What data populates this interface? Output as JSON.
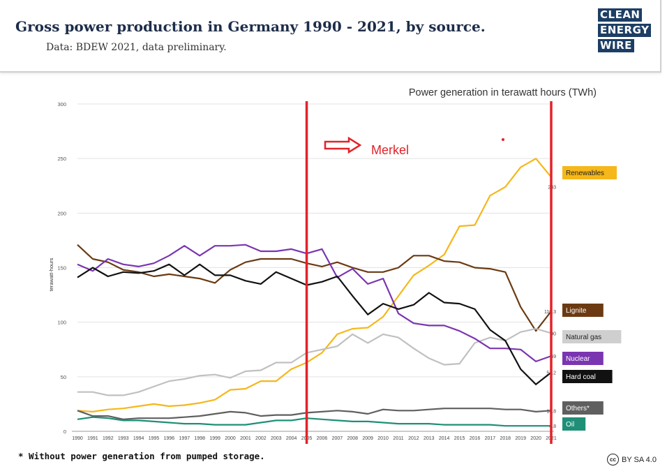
{
  "header": {
    "title": "Gross power production in Germany 1990 - 2021, by source.",
    "subtitle": "Data: BDEW 2021, data preliminary.",
    "logo_lines": [
      "CLEAN",
      "ENERGY",
      "WIRE"
    ]
  },
  "footnote": "* Without power generation from pumped storage.",
  "license": {
    "icon_text": "cc",
    "text": "BY SA 4.0"
  },
  "annotation": {
    "label": "Merkel",
    "line_years": [
      2005,
      2021
    ],
    "color": "#e32228"
  },
  "chart_data": {
    "type": "line",
    "title": "Power generation in terawatt hours (TWh)",
    "ylabel": "terawatt-hours",
    "xlabel": "",
    "ylim": [
      0,
      300
    ],
    "yticks": [
      0,
      50,
      100,
      150,
      200,
      250,
      300
    ],
    "x": [
      1990,
      1991,
      1992,
      1993,
      1994,
      1995,
      1996,
      1997,
      1998,
      1999,
      2000,
      2001,
      2002,
      2003,
      2004,
      2005,
      2006,
      2007,
      2008,
      2009,
      2010,
      2011,
      2012,
      2013,
      2014,
      2015,
      2016,
      2017,
      2018,
      2019,
      2020,
      2021
    ],
    "grid": true,
    "series": [
      {
        "name": "Renewables",
        "color": "#f5b71a",
        "label_color": "#f5b71a",
        "label_text_color": "#222",
        "end_label": "233",
        "values": [
          19,
          18,
          20,
          21,
          23,
          25,
          23,
          24,
          26,
          29,
          38,
          39,
          46,
          46,
          57,
          63,
          72,
          89,
          94,
          95,
          105,
          124,
          143,
          152,
          162,
          188,
          189,
          216,
          224,
          242,
          250,
          233
        ]
      },
      {
        "name": "Lignite",
        "color": "#6b3a12",
        "label_color": "#6b3a12",
        "label_text_color": "#fff",
        "end_label": "110.3",
        "values": [
          171,
          158,
          155,
          148,
          146,
          142,
          144,
          142,
          140,
          136,
          148,
          155,
          158,
          158,
          158,
          154,
          151,
          155,
          150,
          146,
          146,
          150,
          161,
          161,
          156,
          155,
          150,
          149,
          146,
          114,
          92,
          110
        ]
      },
      {
        "name": "Natural gas",
        "color": "#c0c0c0",
        "label_color": "#cfcfcf",
        "label_text_color": "#222",
        "end_label": "90",
        "values": [
          36,
          36,
          33,
          33,
          36,
          41,
          46,
          48,
          51,
          52,
          49,
          55,
          56,
          63,
          63,
          72,
          75,
          78,
          89,
          81,
          89,
          86,
          76,
          67,
          61,
          62,
          81,
          86,
          83,
          91,
          94,
          90
        ]
      },
      {
        "name": "Nuclear",
        "color": "#7a35b0",
        "label_color": "#7a35b0",
        "label_text_color": "#fff",
        "end_label": "69",
        "values": [
          153,
          147,
          158,
          153,
          151,
          154,
          161,
          170,
          161,
          170,
          170,
          171,
          165,
          165,
          167,
          163,
          167,
          141,
          149,
          135,
          140,
          108,
          99,
          97,
          97,
          92,
          85,
          76,
          76,
          75,
          64,
          69
        ]
      },
      {
        "name": "Hard coal",
        "color": "#111111",
        "label_color": "#111111",
        "label_text_color": "#fff",
        "end_label": "54.2",
        "values": [
          141,
          150,
          142,
          146,
          145,
          147,
          153,
          143,
          153,
          143,
          143,
          138,
          135,
          146,
          140,
          134,
          137,
          142,
          124,
          107,
          117,
          112,
          116,
          127,
          118,
          117,
          112,
          93,
          83,
          57,
          43,
          54
        ]
      },
      {
        "name": "Others*",
        "color": "#5f5f5f",
        "label_color": "#5f5f5f",
        "label_text_color": "#fff",
        "end_label": "18.8",
        "values": [
          19,
          14,
          14,
          11,
          12,
          12,
          12,
          13,
          14,
          16,
          18,
          17,
          14,
          15,
          15,
          17,
          18,
          19,
          18,
          16,
          20,
          19,
          19,
          20,
          21,
          21,
          21,
          21,
          20,
          20,
          18,
          19
        ]
      },
      {
        "name": "Oil",
        "color": "#1f8f77",
        "label_color": "#1f8f77",
        "label_text_color": "#fff",
        "end_label": "4.8",
        "values": [
          11,
          13,
          12,
          10,
          10,
          9,
          8,
          7,
          7,
          6,
          6,
          6,
          8,
          10,
          10,
          12,
          11,
          10,
          9,
          9,
          8,
          7,
          7,
          7,
          6,
          6,
          6,
          6,
          5,
          5,
          5,
          5
        ]
      }
    ]
  }
}
